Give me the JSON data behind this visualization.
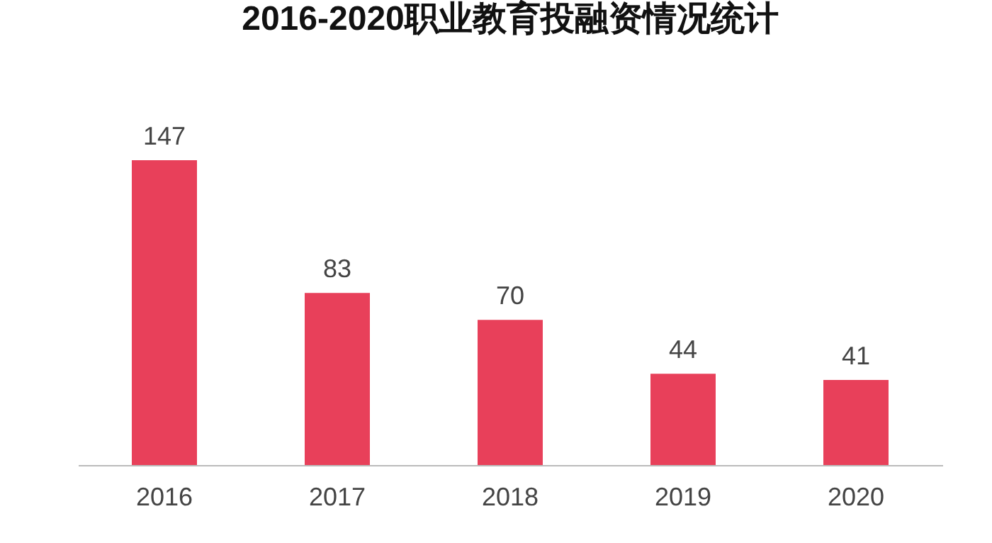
{
  "chart_data": {
    "type": "bar",
    "title": "2016-2020职业教育投融资情况统计",
    "categories": [
      "2016",
      "2017",
      "2018",
      "2019",
      "2020"
    ],
    "values": [
      147,
      83,
      70,
      44,
      41
    ],
    "color": "#e8405a",
    "data_labels": true,
    "grid": false
  }
}
